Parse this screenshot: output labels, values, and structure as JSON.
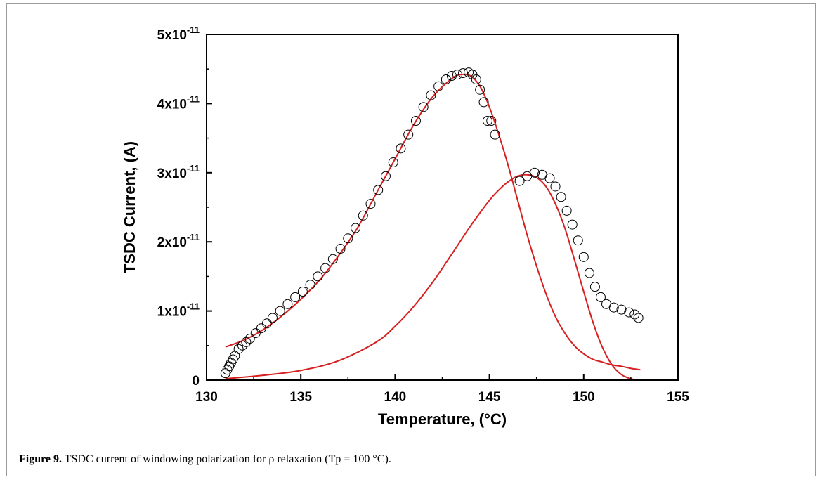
{
  "caption": {
    "label": "Figure 9.",
    "text": "TSDC current of windowing polarization for ρ relaxation (Tp = 100 °C)."
  },
  "colors": {
    "fit": "#d62020",
    "marker": "#000000",
    "axis": "#000000"
  },
  "chart_data": {
    "type": "scatter",
    "xlabel": "Temperature, (°C)",
    "ylabel": "TSDC Current, (A)",
    "xlim": [
      130,
      155
    ],
    "ylim": [
      0,
      5e-11
    ],
    "xticks": [
      {
        "value": 130,
        "label": "130"
      },
      {
        "value": 135,
        "label": "135"
      },
      {
        "value": 140,
        "label": "140"
      },
      {
        "value": 145,
        "label": "145"
      },
      {
        "value": 150,
        "label": "150"
      },
      {
        "value": 155,
        "label": "155"
      }
    ],
    "yticks": [
      {
        "value": 0,
        "label": "0",
        "exp": ""
      },
      {
        "value": 1e-11,
        "label": "1x10",
        "exp": "-11"
      },
      {
        "value": 2e-11,
        "label": "2x10",
        "exp": "-11"
      },
      {
        "value": 3e-11,
        "label": "3x10",
        "exp": "-11"
      },
      {
        "value": 4e-11,
        "label": "4x10",
        "exp": "-11"
      },
      {
        "value": 5e-11,
        "label": "5x10",
        "exp": "-11"
      }
    ],
    "grid": false,
    "series": [
      {
        "kind": "scatter",
        "marker": "open-circle",
        "x": [
          131.0,
          131.1,
          131.2,
          131.3,
          131.4,
          131.5,
          131.7,
          131.9,
          132.1,
          132.3,
          132.6,
          132.9,
          133.2,
          133.5,
          133.9,
          134.3,
          134.7,
          135.1,
          135.5,
          135.9,
          136.3,
          136.7,
          137.1,
          137.5,
          137.9,
          138.3,
          138.7,
          139.1,
          139.5,
          139.9,
          140.3,
          140.7,
          141.1,
          141.5,
          141.9,
          142.3,
          142.7,
          143.0,
          143.3,
          143.6,
          143.9,
          144.1,
          144.3,
          144.5,
          144.7,
          144.9,
          145.1,
          145.3,
          146.6,
          147.0,
          147.4,
          147.8,
          148.2,
          148.5,
          148.8,
          149.1,
          149.4,
          149.7,
          150.0,
          150.3,
          150.6,
          150.9,
          151.2,
          151.6,
          152.0,
          152.4,
          152.7,
          152.9
        ],
        "y": [
          1e-12,
          1.5e-12,
          2e-12,
          2.5e-12,
          3e-12,
          3.5e-12,
          4.5e-12,
          5e-12,
          5.5e-12,
          6e-12,
          6.8e-12,
          7.5e-12,
          8.2e-12,
          9e-12,
          1e-11,
          1.1e-11,
          1.2e-11,
          1.28e-11,
          1.38e-11,
          1.5e-11,
          1.62e-11,
          1.75e-11,
          1.9e-11,
          2.05e-11,
          2.2e-11,
          2.38e-11,
          2.55e-11,
          2.75e-11,
          2.95e-11,
          3.15e-11,
          3.35e-11,
          3.55e-11,
          3.75e-11,
          3.95e-11,
          4.12e-11,
          4.25e-11,
          4.35e-11,
          4.4e-11,
          4.42e-11,
          4.44e-11,
          4.45e-11,
          4.42e-11,
          4.35e-11,
          4.2e-11,
          4.02e-11,
          3.75e-11,
          3.75e-11,
          3.55e-11,
          2.88e-11,
          2.95e-11,
          3e-11,
          2.97e-11,
          2.92e-11,
          2.8e-11,
          2.65e-11,
          2.45e-11,
          2.25e-11,
          2.02e-11,
          1.78e-11,
          1.55e-11,
          1.35e-11,
          1.2e-11,
          1.1e-11,
          1.05e-11,
          1.02e-11,
          9.8e-12,
          9.5e-12,
          9e-12
        ]
      },
      {
        "kind": "line",
        "x": [
          131.0,
          132.0,
          133.0,
          134.0,
          135.0,
          136.0,
          137.0,
          138.0,
          139.0,
          140.0,
          141.0,
          142.0,
          143.0,
          143.5,
          144.0,
          144.5,
          145.0,
          145.5,
          146.0,
          146.5,
          147.0,
          147.5,
          148.0,
          148.5,
          149.0,
          149.5,
          150.0,
          150.5,
          151.0,
          151.5,
          152.0,
          152.5,
          153.0
        ],
        "y": [
          4.8e-12,
          5.8e-12,
          7.3e-12,
          9.3e-12,
          1.17e-11,
          1.45e-11,
          1.8e-11,
          2.2e-11,
          2.7e-11,
          3.2e-11,
          3.7e-11,
          4.1e-11,
          4.36e-11,
          4.42e-11,
          4.4e-11,
          4.25e-11,
          3.95e-11,
          3.55e-11,
          3.1e-11,
          2.6e-11,
          2.1e-11,
          1.65e-11,
          1.25e-11,
          9.2e-12,
          6.8e-12,
          5e-12,
          3.8e-12,
          3e-12,
          2.6e-12,
          2.2e-12,
          2e-12,
          1.7e-12,
          1.5e-12
        ]
      },
      {
        "kind": "line",
        "x": [
          131.0,
          133.0,
          135.0,
          137.0,
          139.0,
          140.0,
          141.0,
          142.0,
          143.0,
          144.0,
          145.0,
          145.5,
          146.0,
          146.5,
          147.0,
          147.5,
          148.0,
          148.5,
          149.0,
          149.5,
          150.0,
          150.5,
          151.0,
          151.5,
          152.0,
          152.5,
          153.0
        ],
        "y": [
          2e-13,
          7e-13,
          1.4e-12,
          2.8e-12,
          5.5e-12,
          7.8e-12,
          1.07e-11,
          1.42e-11,
          1.82e-11,
          2.23e-11,
          2.6e-11,
          2.75e-11,
          2.87e-11,
          2.95e-11,
          2.97e-11,
          2.93e-11,
          2.8e-11,
          2.55e-11,
          2.2e-11,
          1.75e-11,
          1.28e-11,
          8.3e-12,
          4.7e-12,
          2.2e-12,
          8e-13,
          2e-13,
          0.0
        ]
      }
    ]
  }
}
